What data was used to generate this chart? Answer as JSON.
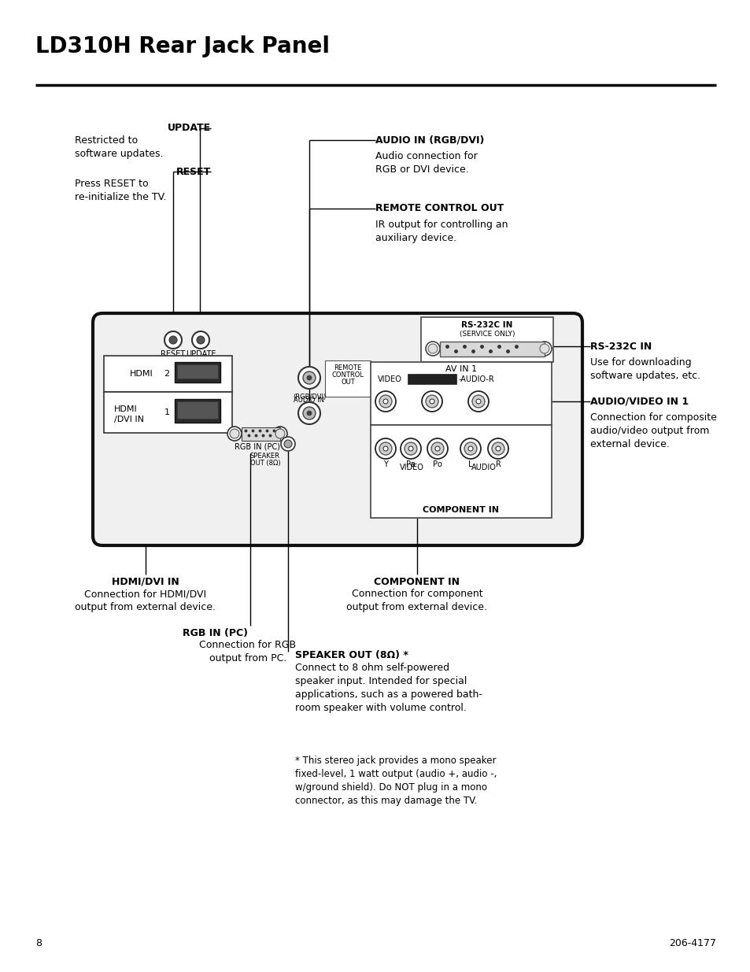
{
  "title": "LD310H Rear Jack Panel",
  "page_num": "8",
  "page_code": "206-4177",
  "bg_color": "#ffffff",
  "labels": {
    "update_bold": "UPDATE",
    "update_desc": "Restricted to\nsoftware updates.",
    "reset_bold": "RESET",
    "reset_desc": "Press RESET to\nre-initialize the TV.",
    "audio_in_bold": "AUDIO IN (RGB/DVI)",
    "audio_in_desc": "Audio connection for\nRGB or DVI device.",
    "remote_bold": "REMOTE CONTROL OUT",
    "remote_desc": "IR output for controlling an\nauxiliary device.",
    "rs232_bold": "RS-232C IN",
    "rs232_desc": "Use for downloading\nsoftware updates, etc.",
    "av_bold": "AUDIO/VIDEO IN 1",
    "av_desc": "Connection for composite\naudio/video output from\nexternal device.",
    "hdmi_bold": "HDMI/DVI IN",
    "hdmi_desc": "Connection for HDMI/DVI\noutput from external device.",
    "component_bold": "COMPONENT IN",
    "component_desc": "Connection for component\noutput from external device.",
    "rgb_bold": "RGB IN (PC)",
    "rgb_desc": "Connection for RGB\noutput from PC.",
    "speaker_bold": "SPEAKER OUT (8Ω) *",
    "speaker_desc": "Connect to 8 ohm self-powered\nspeaker input. Intended for special\napplications, such as a powered bath-\nroom speaker with volume control.",
    "footnote": "* This stereo jack provides a mono speaker\nfixed-level, 1 watt output (audio +, audio -,\nw/ground shield). Do NOT plug in a mono\nconnector, as this may damage the TV."
  }
}
